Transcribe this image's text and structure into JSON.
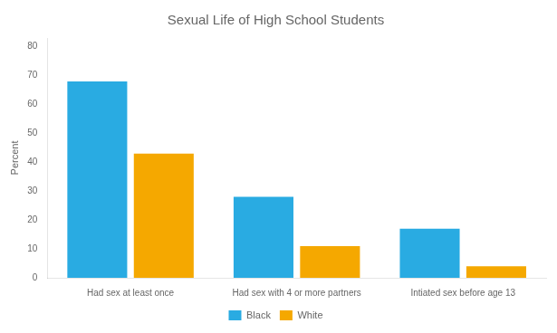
{
  "chart_data": {
    "type": "bar",
    "title": "Sexual Life of High School Students",
    "categories": [
      "Had sex at least once",
      "Had sex with 4 or more partners",
      "Intiated sex before age 13"
    ],
    "series": [
      {
        "name": "Black",
        "color": "#29ABE2",
        "values": [
          68,
          28,
          17
        ]
      },
      {
        "name": "White",
        "color": "#F5A800",
        "values": [
          43,
          11,
          4
        ]
      }
    ],
    "ylabel": "Percent",
    "ylim": [
      0,
      83
    ],
    "yticks": [
      0,
      10,
      20,
      30,
      40,
      50,
      60,
      70,
      80
    ],
    "grid": false,
    "legend": "bottom"
  }
}
